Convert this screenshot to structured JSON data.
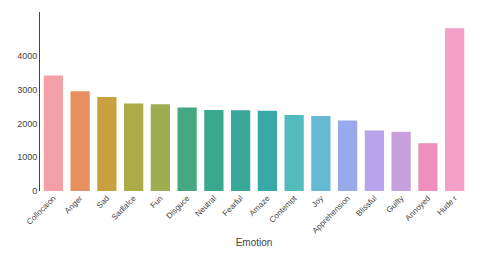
{
  "chart_data": {
    "type": "bar",
    "xlabel": "Emotion",
    "categories": [
      "Collocaion",
      "Anger",
      "Sad",
      "Sadlalce",
      "Fun",
      "Disguce",
      "Neutral",
      "Fearful",
      "Amaze",
      "Contempt",
      "Joy",
      "Apprehension",
      "Blissful",
      "Guilty",
      "Annoyed",
      "Hude r"
    ],
    "values": [
      3420,
      2950,
      2780,
      2590,
      2570,
      2470,
      2400,
      2390,
      2375,
      2250,
      2220,
      2090,
      1790,
      1755,
      1415,
      4820
    ],
    "colors": [
      "#F4A0A8",
      "#E89060",
      "#C9A040",
      "#ABAA48",
      "#9EAD52",
      "#46A882",
      "#38A88E",
      "#38A898",
      "#38A8A8",
      "#52BCBC",
      "#65B8D2",
      "#98AAEC",
      "#B8A4EC",
      "#C8A0DC",
      "#EE90BC",
      "#F4A0C8"
    ],
    "ylim": [
      0,
      5300
    ],
    "yticks": [
      0,
      1000,
      2000,
      3000,
      4000
    ],
    "grid": false
  }
}
